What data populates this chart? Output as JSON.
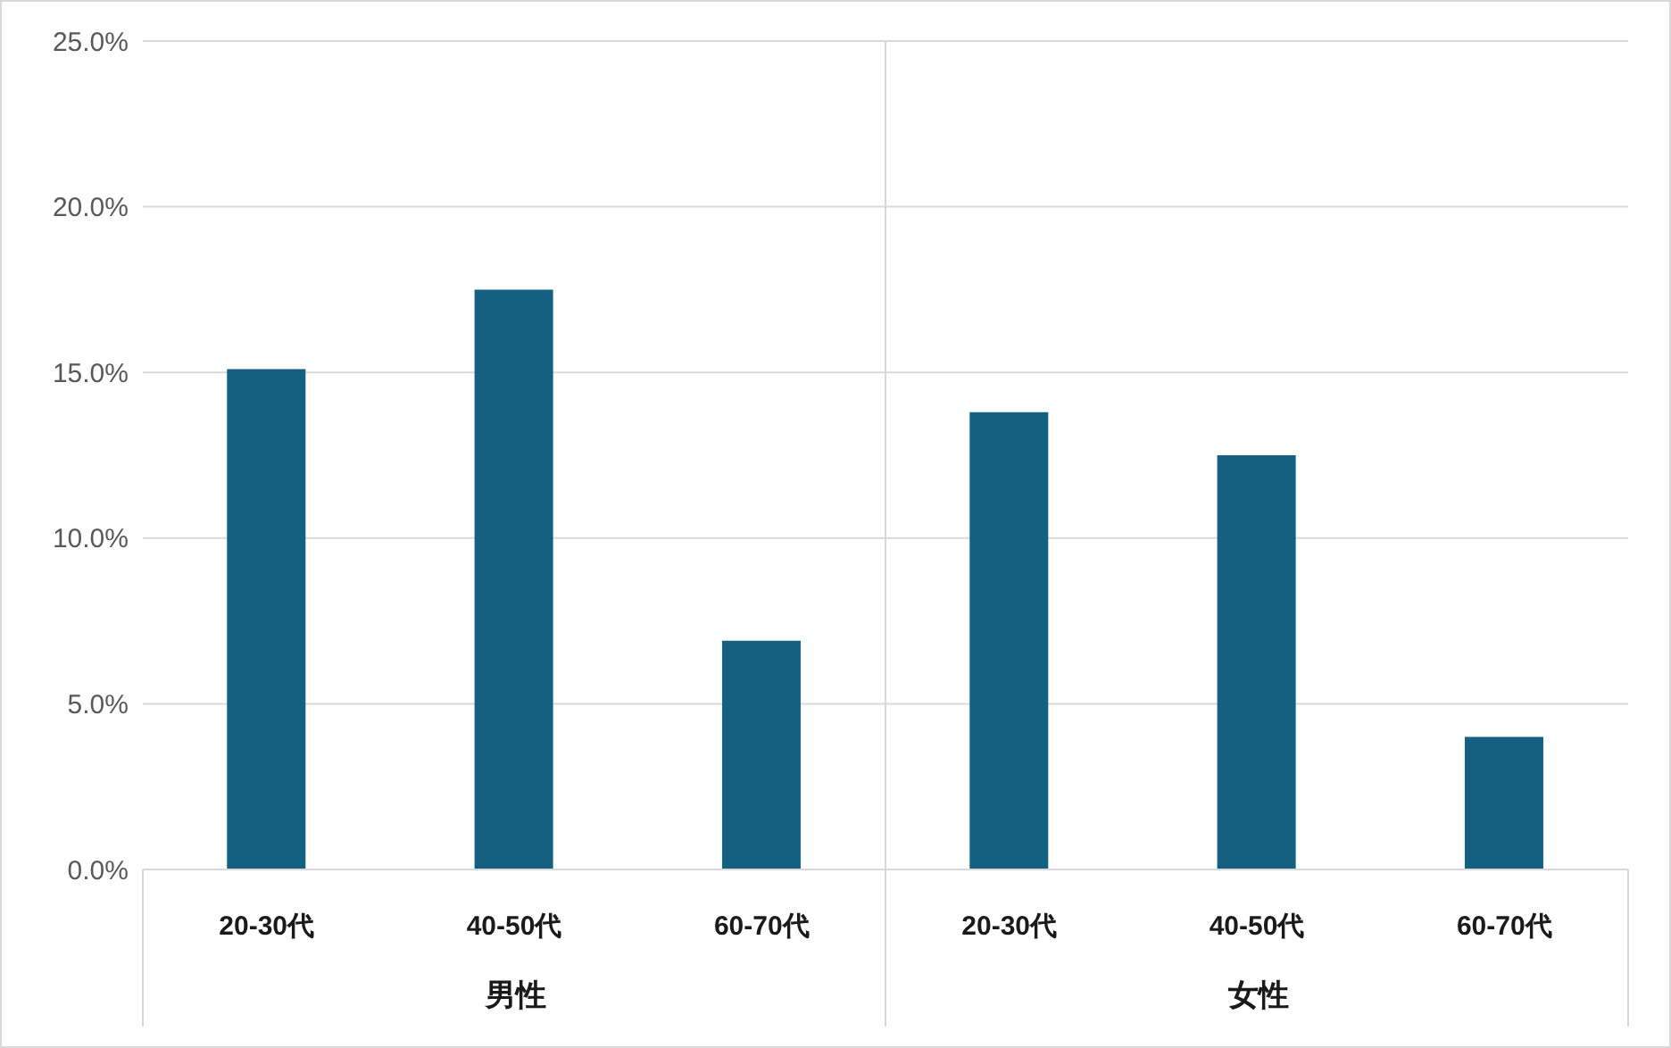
{
  "chart_data": {
    "type": "bar",
    "categories": [
      "20-30代",
      "40-50代",
      "60-70代",
      "20-30代",
      "40-50代",
      "60-70代"
    ],
    "values": [
      15.1,
      17.5,
      6.9,
      13.8,
      12.5,
      4.0
    ],
    "color": "#155f82",
    "ylim": [
      0,
      25
    ],
    "yticks": [
      {
        "value": 0,
        "label": "0.0%"
      },
      {
        "value": 5,
        "label": "5.0%"
      },
      {
        "value": 10,
        "label": "10.0%"
      },
      {
        "value": 15,
        "label": "15.0%"
      },
      {
        "value": 20,
        "label": "20.0%"
      },
      {
        "value": 25,
        "label": "25.0%"
      }
    ],
    "grid": "y",
    "legend": false,
    "annotations": [
      "男性",
      "女性"
    ]
  }
}
